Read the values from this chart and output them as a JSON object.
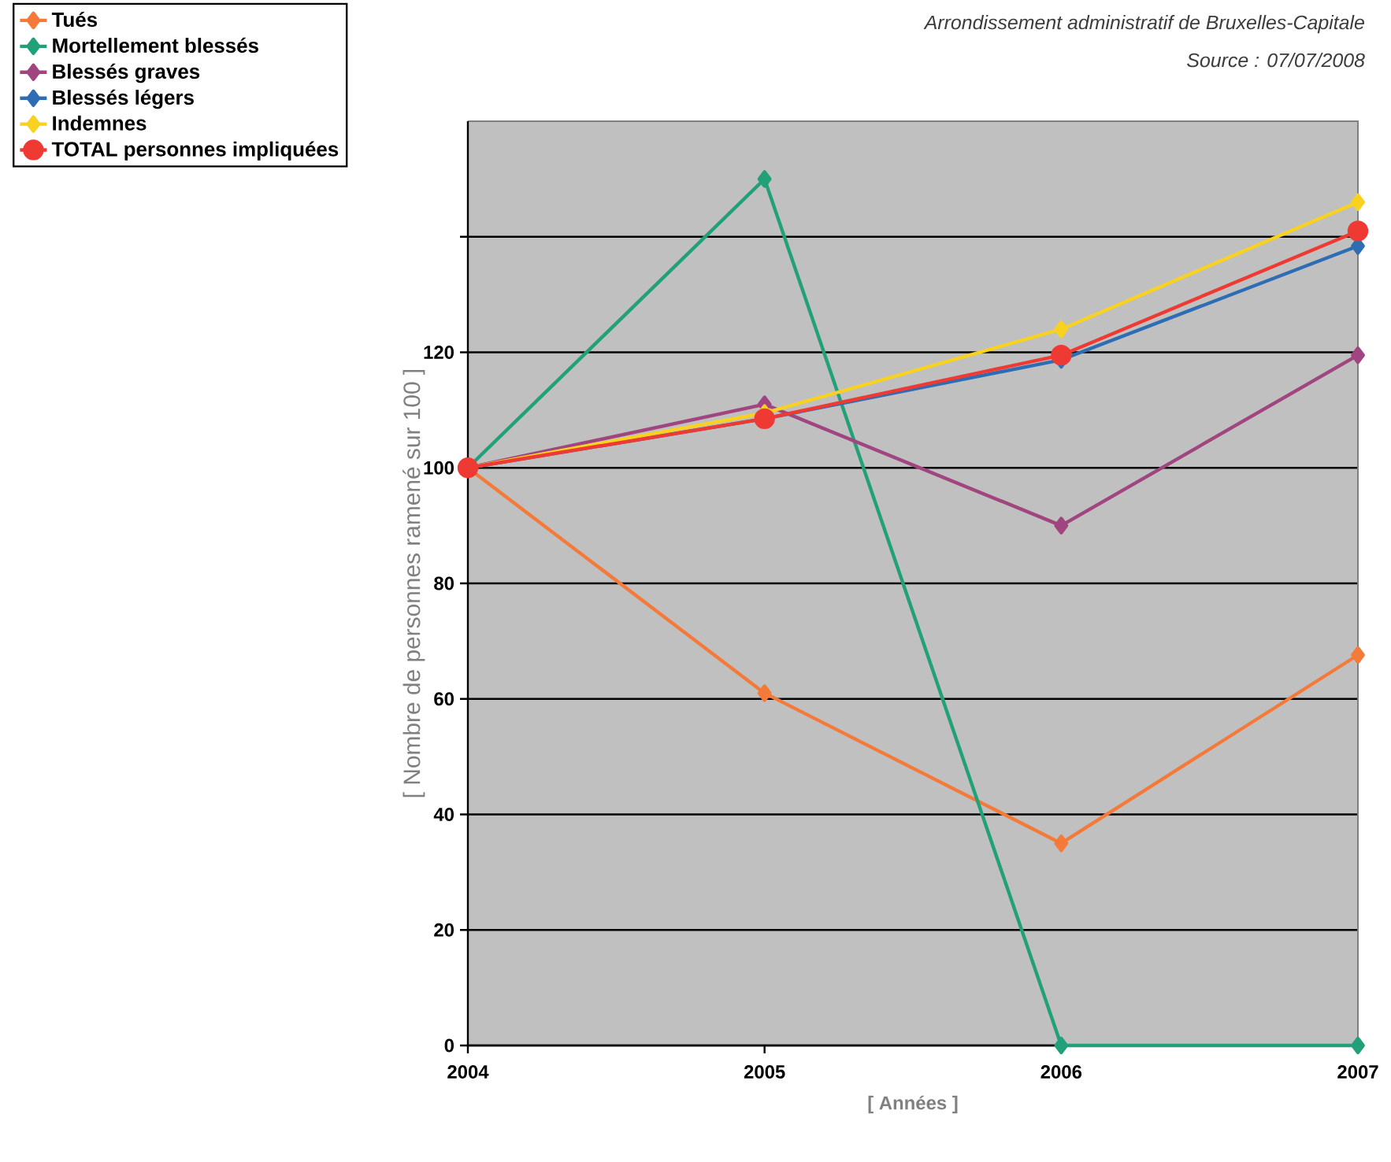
{
  "chart_data": {
    "type": "line",
    "xlabel": "[ Années ]",
    "ylabel": "[ Nombre de personnes ramené sur 100 ]",
    "annotations": [
      "Arrondissement administratif de Bruxelles-Capitale",
      "Source : 07/07/2008"
    ],
    "x": [
      2004,
      2005,
      2006,
      2007
    ],
    "xlim": [
      2004,
      2007
    ],
    "xticks": [
      2004,
      2005,
      2006,
      2007
    ],
    "ylim": [
      0,
      160
    ],
    "yticks": [
      0,
      20,
      40,
      60,
      80,
      100,
      120,
      {
        "value": 140,
        "label": null
      }
    ],
    "grid": "y",
    "legend": "top left",
    "marker": "diamond",
    "line_style": "solid",
    "series": [
      {
        "name": "Tués",
        "color": "#f47a3a",
        "values": [
          100,
          61,
          35,
          67.6
        ]
      },
      {
        "name": "Mortellement blessés",
        "color": "#22a07a",
        "values": [
          100,
          150,
          0,
          0
        ]
      },
      {
        "name": "Blessés graves",
        "color": "#a0457f",
        "values": [
          100,
          111,
          90,
          119.5
        ]
      },
      {
        "name": "Blessés légers",
        "color": "#2e6db4",
        "values": [
          100,
          108.5,
          118.7,
          138.4
        ]
      },
      {
        "name": "Indemnes",
        "color": "#f9d21f",
        "values": [
          100,
          109.5,
          124,
          146
        ]
      },
      {
        "name": "TOTAL personnes impliquées",
        "color": "#ee3a33",
        "values": [
          100,
          108.5,
          119.5,
          141
        ],
        "marker": "circle"
      }
    ]
  }
}
